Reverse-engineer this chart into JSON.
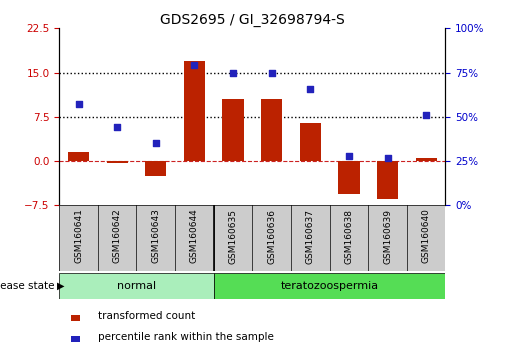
{
  "title": "GDS2695 / GI_32698794-S",
  "samples": [
    "GSM160641",
    "GSM160642",
    "GSM160643",
    "GSM160644",
    "GSM160635",
    "GSM160636",
    "GSM160637",
    "GSM160638",
    "GSM160639",
    "GSM160640"
  ],
  "transformed_count": [
    1.5,
    -0.3,
    -2.5,
    17.0,
    10.5,
    10.5,
    6.5,
    -5.5,
    -6.5,
    0.5
  ],
  "percentile_rank": [
    57,
    44,
    35,
    79,
    75,
    75,
    66,
    28,
    27,
    51
  ],
  "ylim_left": [
    -7.5,
    22.5
  ],
  "ylim_right": [
    0,
    100
  ],
  "yticks_left": [
    -7.5,
    0,
    7.5,
    15,
    22.5
  ],
  "yticks_right": [
    0,
    25,
    50,
    75,
    100
  ],
  "hlines": [
    7.5,
    15.0
  ],
  "bar_color": "#bb2200",
  "dot_color": "#2222bb",
  "normal_fill": "#aaeebb",
  "terato_fill": "#55dd55",
  "label_normal": "normal",
  "label_terato": "teratozoospermia",
  "legend_bar": "transformed count",
  "legend_dot": "percentile rank within the sample",
  "disease_state_label": "disease state",
  "tick_color_left": "#cc0000",
  "tick_color_right": "#0000cc",
  "zero_line_color": "#cc2222",
  "label_bg": "#cccccc",
  "figsize": [
    5.15,
    3.54
  ],
  "dpi": 100
}
